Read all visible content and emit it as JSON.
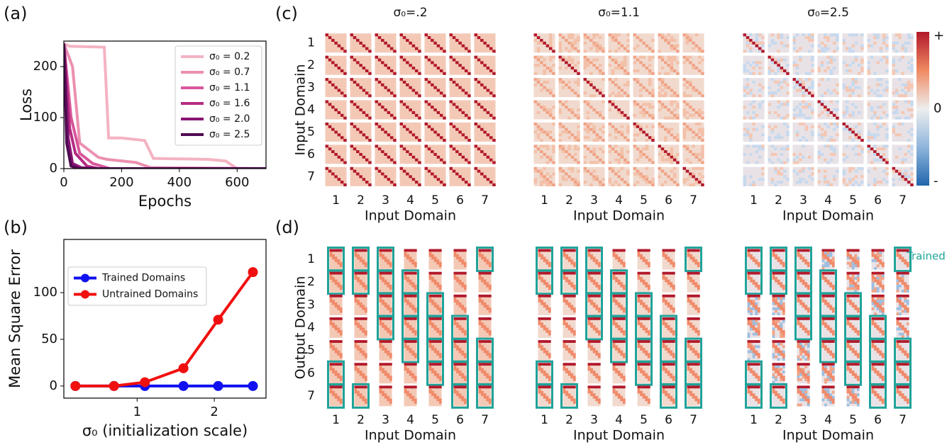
{
  "chart_data": [
    {
      "type": "line",
      "label": "(a)",
      "xlabel": "Epochs",
      "ylabel": "Loss",
      "xlim": [
        0,
        700
      ],
      "xticks": [
        0,
        200,
        400,
        600
      ],
      "ylim": [
        0,
        250
      ],
      "yticks": [
        0,
        100,
        200
      ],
      "legend": "upper-right",
      "series": [
        {
          "name": "σ₀ = 0.2",
          "color": "#f4b3c2",
          "x": [
            0,
            20,
            140,
            155,
            200,
            280,
            310,
            500,
            560,
            600,
            700
          ],
          "values": [
            245,
            240,
            238,
            60,
            60,
            55,
            20,
            18,
            15,
            0,
            0
          ]
        },
        {
          "name": "σ₀ = 0.7",
          "color": "#ec8fb0",
          "x": [
            0,
            30,
            55,
            120,
            150,
            250,
            300,
            700
          ],
          "values": [
            245,
            200,
            50,
            22,
            18,
            12,
            2,
            0
          ]
        },
        {
          "name": "σ₀ = 1.1",
          "color": "#d9569a",
          "x": [
            0,
            25,
            55,
            100,
            160,
            700
          ],
          "values": [
            245,
            100,
            30,
            10,
            0,
            0
          ]
        },
        {
          "name": "σ₀ = 1.6",
          "color": "#b52c82",
          "x": [
            0,
            20,
            40,
            80,
            120,
            700
          ],
          "values": [
            245,
            80,
            30,
            5,
            0,
            0
          ]
        },
        {
          "name": "σ₀ = 2.0",
          "color": "#8a1473",
          "x": [
            0,
            15,
            30,
            60,
            100,
            700
          ],
          "values": [
            245,
            60,
            10,
            2,
            0,
            0
          ]
        },
        {
          "name": "σ₀ = 2.5",
          "color": "#4f0a52",
          "x": [
            0,
            10,
            25,
            50,
            80,
            700
          ],
          "values": [
            245,
            50,
            5,
            0,
            0,
            0
          ]
        }
      ]
    },
    {
      "type": "line",
      "label": "(b)",
      "xlabel": "σ₀ (initialization scale)",
      "ylabel": "Mean Square Error",
      "x": [
        0.2,
        0.7,
        1.1,
        1.6,
        2.05,
        2.5
      ],
      "xlim": [
        0.05,
        2.67
      ],
      "xticks": [
        1,
        2
      ],
      "ylim": [
        -13,
        157
      ],
      "yticks": [
        0,
        50,
        100
      ],
      "legend": "upper-left",
      "markers": true,
      "series": [
        {
          "name": "Trained Domains",
          "color": "#1010f0",
          "values": [
            0,
            0,
            0,
            0,
            0,
            0
          ]
        },
        {
          "name": "Untrained Domains",
          "color": "#f01010",
          "values": [
            0,
            0,
            4,
            19,
            71,
            122
          ]
        }
      ]
    },
    {
      "type": "heatmap-grid",
      "label": "(c)",
      "titles": [
        "σ₀=.2",
        "σ₀=1.1",
        "σ₀=2.5"
      ],
      "categories": [
        "1",
        "2",
        "3",
        "4",
        "5",
        "6",
        "7"
      ],
      "xlabel": "Input Domain",
      "ylabel": "Input Domain",
      "colorbar": [
        "+",
        "0",
        "-"
      ]
    },
    {
      "type": "heatmap-grid",
      "label": "(d)",
      "categories": [
        "1",
        "2",
        "3",
        "4",
        "5",
        "6",
        "7"
      ],
      "xlabel": "Input Domain",
      "ylabel": "Output Domain",
      "trained_label": "Trained",
      "trained": [
        [
          1,
          1,
          1,
          0,
          0,
          0,
          1
        ],
        [
          1,
          1,
          1,
          1,
          0,
          0,
          0
        ],
        [
          0,
          0,
          1,
          1,
          1,
          0,
          0
        ],
        [
          0,
          0,
          1,
          1,
          1,
          1,
          0
        ],
        [
          0,
          0,
          0,
          1,
          1,
          1,
          1
        ],
        [
          1,
          0,
          0,
          0,
          1,
          1,
          1
        ],
        [
          1,
          1,
          0,
          0,
          0,
          1,
          1
        ]
      ]
    }
  ]
}
